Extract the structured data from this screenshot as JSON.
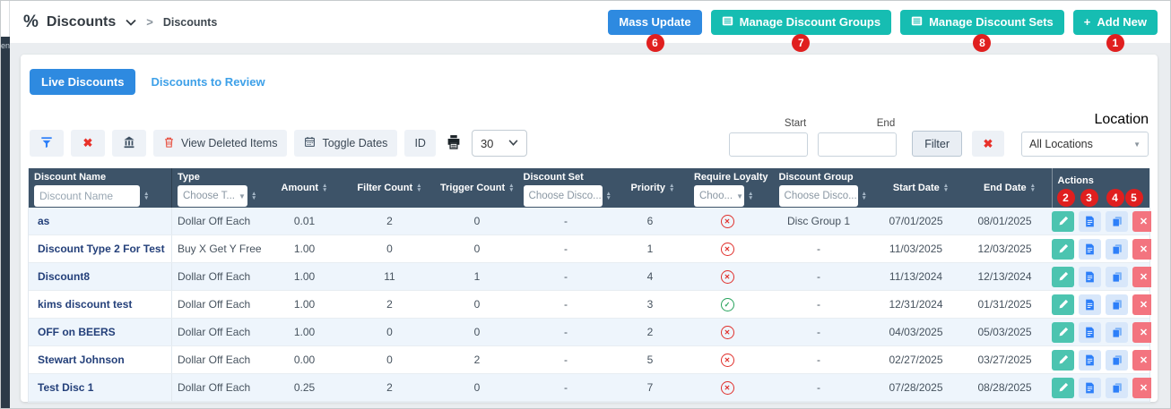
{
  "breadcrumb": {
    "percent_icon": "%",
    "title": "Discounts",
    "crumb": "Discounts"
  },
  "header_actions": {
    "mass_update": {
      "label": "Mass Update",
      "badge": "6"
    },
    "manage_groups": {
      "label": "Manage Discount Groups",
      "badge": "7"
    },
    "manage_sets": {
      "label": "Manage Discount Sets",
      "badge": "8"
    },
    "add_new": {
      "label": "Add New",
      "badge": "1"
    }
  },
  "tabs": {
    "live": "Live Discounts",
    "review": "Discounts to Review"
  },
  "toolbar": {
    "view_deleted": "View Deleted Items",
    "toggle_dates": "Toggle Dates",
    "id": "ID",
    "page_size": "30",
    "start_label": "Start",
    "end_label": "End",
    "filter": "Filter",
    "location_label": "Location",
    "location_value": "All Locations"
  },
  "icons": {
    "plus": "+",
    "clear": "✖",
    "delete": "✕",
    "caret": "▼",
    "sort_up": "▲",
    "sort_down": "▼",
    "breadcrumb_sep": ">",
    "loyalty_no": "✕",
    "loyalty_yes": "✓"
  },
  "sidebar_fragment": "ent",
  "colors": {
    "teal": "#16bdb2",
    "blue": "#2e8ae0",
    "badge_red": "#e01f1f",
    "header_bg": "#3d5368",
    "link_blue": "#3da0e8",
    "stripe": "#eef5fc"
  },
  "table": {
    "columns": [
      {
        "label": "Discount Name",
        "filter": "input",
        "placeholder": "Discount Name"
      },
      {
        "label": "Type",
        "filter": "select",
        "placeholder": "Choose T..."
      },
      {
        "label": "Amount"
      },
      {
        "label": "Filter Count"
      },
      {
        "label": "Trigger Count"
      },
      {
        "label": "Discount Set",
        "filter": "select",
        "placeholder": "Choose Disco..."
      },
      {
        "label": "Priority"
      },
      {
        "label": "Require Loyalty",
        "filter": "select",
        "placeholder": "Choo..."
      },
      {
        "label": "Discount Group",
        "filter": "select",
        "placeholder": "Choose Disco..."
      },
      {
        "label": "Start Date"
      },
      {
        "label": "End Date"
      },
      {
        "label": "Actions",
        "badges": [
          "2",
          "3",
          "4",
          "5"
        ]
      }
    ],
    "rows": [
      {
        "name": "as",
        "type": "Dollar Off Each",
        "amount": "0.01",
        "filter_count": "2",
        "trigger_count": "0",
        "discount_set": "-",
        "priority": "6",
        "require_loyalty": "no",
        "discount_group": "Disc Group 1",
        "start_date": "07/01/2025",
        "end_date": "08/01/2025"
      },
      {
        "name": "Discount Type 2 For Test",
        "type": "Buy X Get Y Free",
        "amount": "1.00",
        "filter_count": "0",
        "trigger_count": "0",
        "discount_set": "-",
        "priority": "1",
        "require_loyalty": "no",
        "discount_group": "-",
        "start_date": "11/03/2025",
        "end_date": "12/03/2025"
      },
      {
        "name": "Discount8",
        "type": "Dollar Off Each",
        "amount": "1.00",
        "filter_count": "11",
        "trigger_count": "1",
        "discount_set": "-",
        "priority": "4",
        "require_loyalty": "no",
        "discount_group": "-",
        "start_date": "11/13/2024",
        "end_date": "12/13/2024"
      },
      {
        "name": "kims discount test",
        "type": "Dollar Off Each",
        "amount": "1.00",
        "filter_count": "2",
        "trigger_count": "0",
        "discount_set": "-",
        "priority": "3",
        "require_loyalty": "yes",
        "discount_group": "-",
        "start_date": "12/31/2024",
        "end_date": "01/31/2025"
      },
      {
        "name": "OFF on BEERS",
        "type": "Dollar Off Each",
        "amount": "1.00",
        "filter_count": "0",
        "trigger_count": "0",
        "discount_set": "-",
        "priority": "2",
        "require_loyalty": "no",
        "discount_group": "-",
        "start_date": "04/03/2025",
        "end_date": "05/03/2025"
      },
      {
        "name": "Stewart Johnson",
        "type": "Dollar Off Each",
        "amount": "0.00",
        "filter_count": "0",
        "trigger_count": "2",
        "discount_set": "-",
        "priority": "5",
        "require_loyalty": "no",
        "discount_group": "-",
        "start_date": "02/27/2025",
        "end_date": "03/27/2025"
      },
      {
        "name": "Test Disc 1",
        "type": "Dollar Off Each",
        "amount": "0.25",
        "filter_count": "2",
        "trigger_count": "0",
        "discount_set": "-",
        "priority": "7",
        "require_loyalty": "no",
        "discount_group": "-",
        "start_date": "07/28/2025",
        "end_date": "08/28/2025"
      }
    ]
  }
}
